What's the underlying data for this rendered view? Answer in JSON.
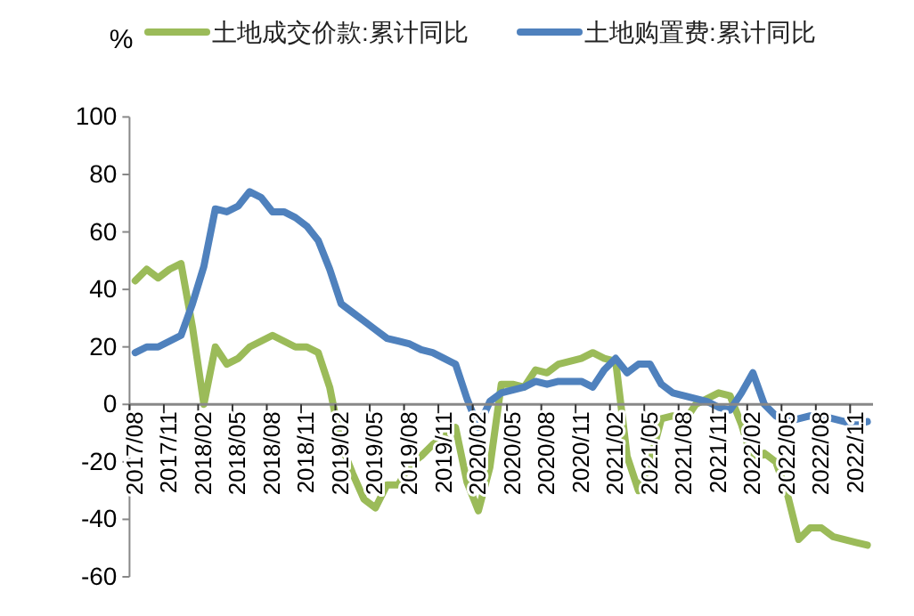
{
  "chart_data": {
    "type": "line",
    "ylabel": "%",
    "categories": [
      "2017/08",
      null,
      null,
      "2017/11",
      null,
      null,
      "2018/02",
      null,
      null,
      "2018/05",
      null,
      null,
      "2018/08",
      null,
      null,
      "2018/11",
      null,
      null,
      "2019/02",
      null,
      null,
      "2019/05",
      null,
      null,
      "2019/08",
      null,
      null,
      "2019/11",
      null,
      null,
      "2020/02",
      null,
      null,
      "2020/05",
      null,
      null,
      "2020/08",
      null,
      null,
      "2020/11",
      null,
      null,
      "2021/02",
      null,
      null,
      "2021/05",
      null,
      null,
      "2021/08",
      null,
      null,
      "2021/11",
      null,
      null,
      "2022/02",
      null,
      null,
      "2022/05",
      null,
      null,
      "2022/08",
      null,
      null,
      "2022/11",
      null
    ],
    "series": [
      {
        "name": "土地成交价款:累计同比",
        "color": "#9bbb59",
        "values": [
          43,
          47,
          44,
          47,
          49,
          27,
          0,
          20,
          14,
          16,
          20,
          22,
          24,
          22,
          20,
          20,
          18,
          6,
          -14,
          -24,
          -33,
          -36,
          -28,
          -28,
          -21,
          -18,
          -14,
          -11,
          -8,
          -27,
          -37,
          -22,
          7,
          7,
          6,
          12,
          11,
          14,
          15,
          16,
          18,
          16,
          15,
          -18,
          -30,
          -20,
          -5,
          -4,
          -6,
          0,
          2,
          4,
          3,
          -7,
          -20,
          -17,
          -20,
          -31,
          -47,
          -43,
          -43,
          -46,
          -47,
          -48,
          -49
        ]
      },
      {
        "name": "土地购置费:累计同比",
        "color": "#4f81bd",
        "values": [
          18,
          20,
          20,
          22,
          24,
          35,
          48,
          68,
          67,
          69,
          74,
          72,
          67,
          67,
          65,
          62,
          57,
          47,
          35,
          32,
          29,
          26,
          23,
          22,
          21,
          19,
          18,
          16,
          14,
          2,
          -8,
          1,
          4,
          5,
          6,
          8,
          7,
          8,
          8,
          8,
          6,
          12,
          16,
          11,
          14,
          14,
          7,
          4,
          3,
          2,
          1,
          -1,
          -2,
          4,
          11,
          0,
          -4,
          -6,
          -5,
          -4,
          -4,
          -5,
          -6,
          -7,
          -6
        ]
      }
    ],
    "ylim": [
      -60,
      100
    ],
    "yticks": [
      -60,
      -40,
      -20,
      0,
      20,
      40,
      60,
      80,
      100
    ],
    "grid": false,
    "legend": "top",
    "line_style": "solid",
    "marker": "none"
  }
}
